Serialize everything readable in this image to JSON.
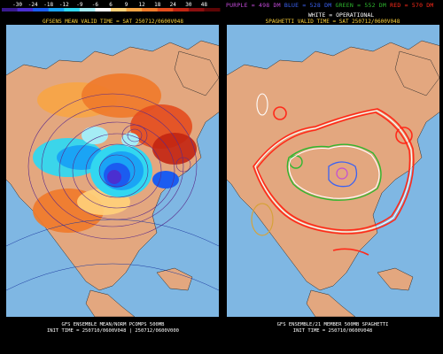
{
  "left_panel": {
    "legend_ticks": [
      "-30",
      "-24",
      "-18",
      "-12",
      "-9",
      "-6",
      "6",
      "9",
      "12",
      "18",
      "24",
      "30",
      "48"
    ],
    "legend_colors": [
      "#3a1b8f",
      "#4b2fd0",
      "#1b5cf0",
      "#1aa4f5",
      "#32d7f0",
      "#a5ecf5",
      "#ffffff",
      "#ffd27a",
      "#f7a545",
      "#ef7a2a",
      "#e34d1e",
      "#c22512",
      "#8a0f0f",
      "#5c0505"
    ],
    "title": "GFSENS MEAN VALID TIME = SAT 250712/0600V048",
    "caption_line1": "GFS ENSEMBLE MEAN/NORM PCOMPS 500MB",
    "caption_line2": "INIT TIME = 250710/0600V048 | 250712/0600V000"
  },
  "right_panel": {
    "legend_segments": [
      {
        "text": "PURPLE = 498 DM",
        "color": "#c24bd8"
      },
      {
        "text": "BLUE = 528 DM",
        "color": "#3b62f2"
      },
      {
        "text": "GREEN = 552 DM",
        "color": "#2fb72f"
      },
      {
        "text": "RED = 570 DM",
        "color": "#ff2a1a"
      }
    ],
    "operational_label": "WHITE = OPERATIONAL",
    "title": "SPAGHETTI VALID TIME = SAT 250712/0600V048",
    "caption_line1": "GFS ENSEMBLE/21 MEMBER 500MB SPAGHETTI",
    "caption_line2": "INIT TIME = 250710/0600V048"
  }
}
